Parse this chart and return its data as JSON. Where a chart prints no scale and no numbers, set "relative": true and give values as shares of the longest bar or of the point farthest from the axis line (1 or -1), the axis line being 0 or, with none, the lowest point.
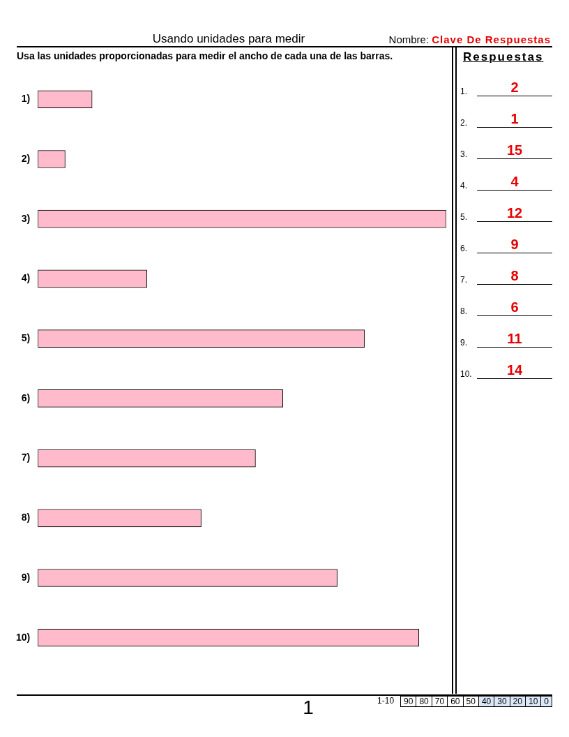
{
  "chart_data": {
    "type": "bar",
    "orientation": "horizontal",
    "title": "Usando unidades para medir",
    "subtitle": "Usa las unidades proporcionadas para medir el ancho de cada una de las barras.",
    "categories": [
      "1)",
      "2)",
      "3)",
      "4)",
      "5)",
      "6)",
      "7)",
      "8)",
      "9)",
      "10)"
    ],
    "values": [
      0.133,
      0.067,
      1,
      0.267,
      0.8,
      0.6,
      0.533,
      0.4,
      0.733,
      0.933
    ],
    "relative": true,
    "color": "#ffbbcc",
    "legend": false,
    "tick_labels": "y",
    "annotations": [
      "Nombre:",
      "Clave De Respuestas",
      "Respuestas",
      "1",
      "1-10 90 80 70 60 50 40 30 20 10 0",
      "1.",
      "2",
      "2.",
      "1",
      "3.",
      "15",
      "4.",
      "4",
      "5.",
      "12",
      "6.",
      "9",
      "7.",
      "8",
      "8.",
      "6",
      "9.",
      "11",
      "10.",
      "14"
    ]
  }
}
